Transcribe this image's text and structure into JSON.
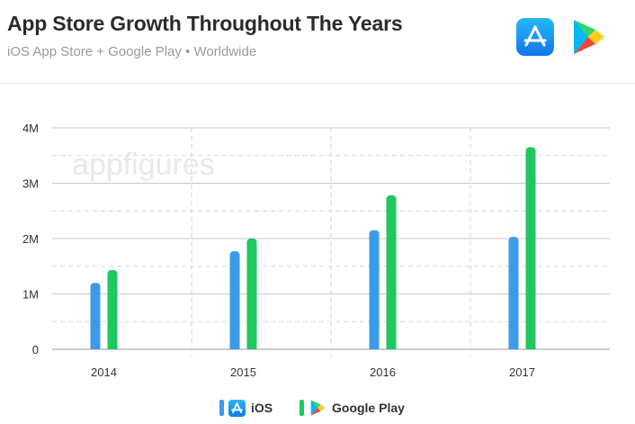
{
  "header": {
    "title": "App Store Growth Throughout The Years",
    "subtitle": "iOS App Store + Google Play • Worldwide",
    "icons": [
      "app-store-icon",
      "google-play-icon"
    ]
  },
  "watermark": "appfigures",
  "colors": {
    "ios": "#3c9be8",
    "google_play": "#1ec85f",
    "grid": "#c8c8c8"
  },
  "chart_data": {
    "type": "bar",
    "categories": [
      "2014",
      "2015",
      "2016",
      "2017"
    ],
    "series": [
      {
        "name": "iOS",
        "values": [
          1.2,
          1.77,
          2.15,
          2.03
        ]
      },
      {
        "name": "Google Play",
        "values": [
          1.43,
          2.0,
          2.78,
          3.65
        ]
      }
    ],
    "y_ticks": [
      "0",
      "1M",
      "2M",
      "3M",
      "4M"
    ],
    "ylim": [
      0,
      4
    ],
    "y_unit": "M",
    "grid": true,
    "legend_position": "bottom-center"
  },
  "legend": {
    "ios_label": "iOS",
    "gp_label": "Google Play"
  }
}
